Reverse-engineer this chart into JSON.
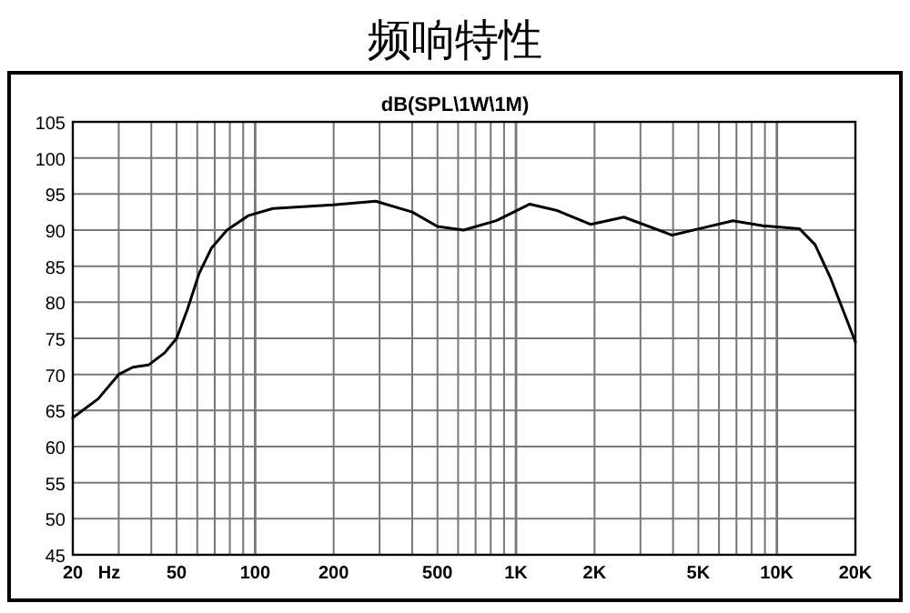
{
  "chart_data": {
    "type": "line",
    "title": "频响特性",
    "subtitle": "dB(SPL\\1W\\1M)",
    "xlabel": "Hz",
    "log": "x",
    "grid": true,
    "xlim": [
      20,
      20000
    ],
    "ylim": [
      45,
      105
    ],
    "xticks": [
      20,
      50,
      100,
      200,
      500,
      {
        "value": 1000,
        "label": "1K"
      },
      {
        "value": 2000,
        "label": "2K"
      },
      {
        "value": 5000,
        "label": "5K"
      },
      {
        "value": 10000,
        "label": "10K"
      },
      {
        "value": 20000,
        "label": "20K"
      }
    ],
    "yticks": [
      45,
      50,
      55,
      60,
      65,
      70,
      75,
      80,
      85,
      90,
      95,
      100,
      105
    ],
    "series": [
      {
        "color": "#000000",
        "x": [
          20,
          25,
          30,
          34,
          39,
          45,
          50,
          55,
          61,
          68,
          78,
          94,
          117,
          199,
          290,
          400,
          500,
          630,
          840,
          1130,
          1440,
          1930,
          2590,
          3970,
          5190,
          6780,
          8850,
          12200,
          14000,
          16000,
          20000
        ],
        "values": [
          64,
          66.6,
          70,
          71,
          71.3,
          73,
          75,
          79,
          84,
          87.5,
          90,
          92,
          93,
          93.5,
          94,
          92.5,
          90.5,
          90,
          91.3,
          93.6,
          92.7,
          90.8,
          91.8,
          89.3,
          90.3,
          91.3,
          90.6,
          90.2,
          88,
          83.5,
          74.5
        ]
      }
    ]
  }
}
